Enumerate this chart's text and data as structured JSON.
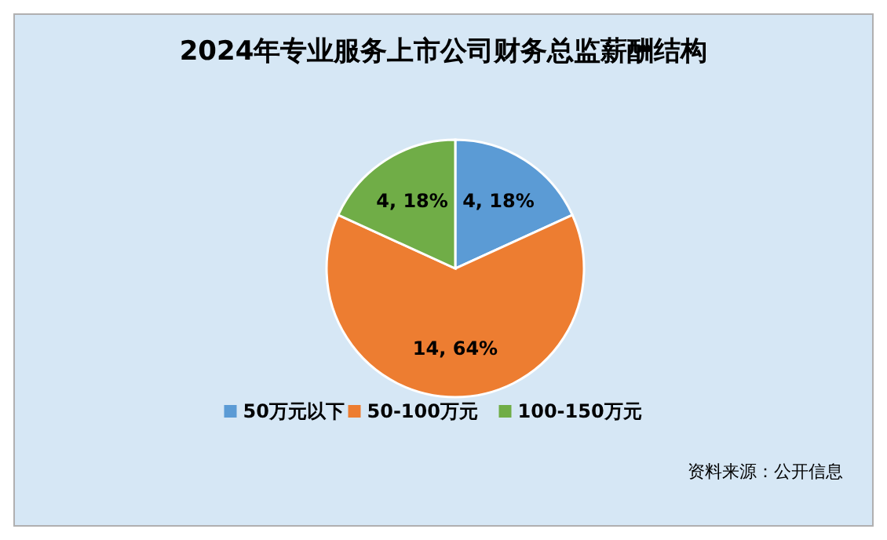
{
  "chart_data": {
    "type": "pie",
    "title": "2024年专业服务上市公司财务总监薪酬结构",
    "categories": [
      "50万元以下",
      "50-100万元",
      "100-150万元"
    ],
    "values": [
      4,
      14,
      4
    ],
    "colors": [
      "#5b9bd5",
      "#ed7d31",
      "#70ad47"
    ],
    "value_labels": [
      "4, 18%",
      "14, 64%",
      "4, 18%"
    ],
    "legend": "bottom",
    "annotations": [
      "资料来源：公开信息"
    ]
  }
}
